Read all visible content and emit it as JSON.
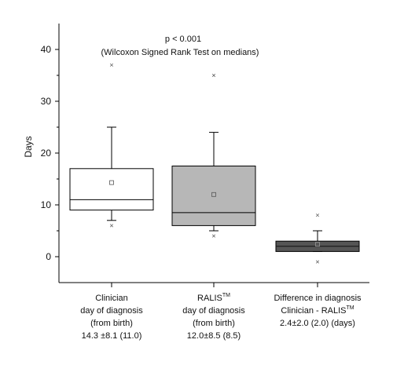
{
  "chart_data": {
    "type": "box",
    "ylabel": "Days",
    "ylim": [
      -5,
      45
    ],
    "yticks": [
      0,
      10,
      20,
      30,
      40
    ],
    "annotation": {
      "line1": "p < 0.001",
      "line2": "(Wilcoxon Signed Rank Test on medians)"
    },
    "categories": [
      {
        "label_lines": [
          "Clinician",
          "day of diagnosis",
          "(from birth)",
          "14.3 ±8.1  (11.0)"
        ],
        "label_super": null,
        "fill": "#ffffff",
        "whisker_low": 7,
        "q1": 9,
        "median": 11,
        "q3": 17,
        "whisker_high": 25,
        "mean": 14.3,
        "outlier_low": 6,
        "outlier_high": 37
      },
      {
        "label_lines": [
          "RALIS",
          "day of diagnosis",
          "(from birth)",
          "12.0±8.5 (8.5)"
        ],
        "label_super": "TM",
        "fill": "#b7b7b7",
        "whisker_low": 5,
        "q1": 6,
        "median": 8.5,
        "q3": 17.5,
        "whisker_high": 24,
        "mean": 12.0,
        "outlier_low": 4,
        "outlier_high": 35
      },
      {
        "label_lines": [
          "Difference in diagnosis",
          "Clinician - RALIS",
          "2.4±2.0 (2.0) (days)"
        ],
        "label_super": "TM",
        "fill": "#555555",
        "whisker_low": 1,
        "q1": 1,
        "median": 2,
        "q3": 3,
        "whisker_high": 5,
        "mean": 2.4,
        "outlier_low": -1,
        "outlier_high": 8
      }
    ]
  }
}
